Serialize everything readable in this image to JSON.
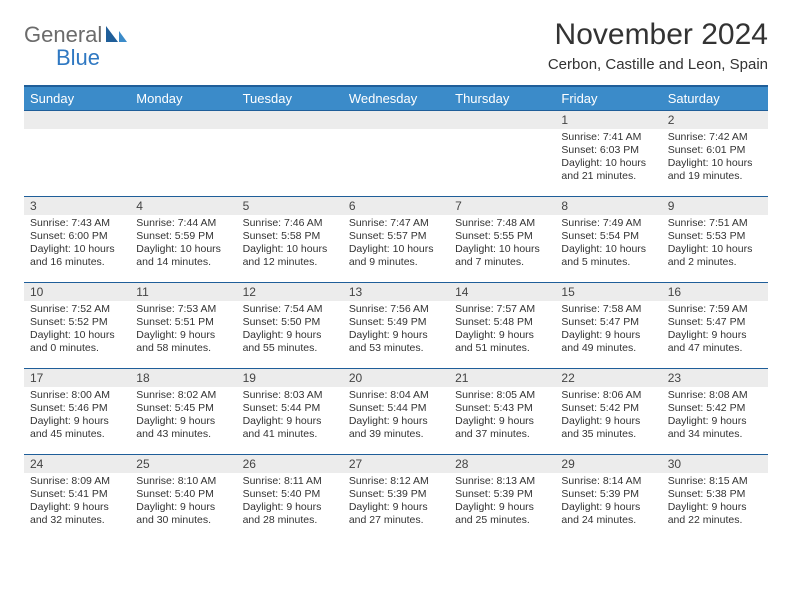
{
  "brand": {
    "general": "General",
    "blue": "Blue"
  },
  "title": "November 2024",
  "subtitle": "Cerbon, Castille and Leon, Spain",
  "colors": {
    "header_bg": "#3b8bc9",
    "header_text": "#ffffff",
    "row_border": "#1f5e99",
    "daynum_bg": "#ececec",
    "brand_blue": "#2f78c2",
    "brand_gray": "#6b6b6b"
  },
  "dow": [
    "Sunday",
    "Monday",
    "Tuesday",
    "Wednesday",
    "Thursday",
    "Friday",
    "Saturday"
  ],
  "weeks": [
    [
      null,
      null,
      null,
      null,
      null,
      {
        "n": "1",
        "sr": "7:41 AM",
        "ss": "6:03 PM",
        "dl": "10 hours and 21 minutes."
      },
      {
        "n": "2",
        "sr": "7:42 AM",
        "ss": "6:01 PM",
        "dl": "10 hours and 19 minutes."
      }
    ],
    [
      {
        "n": "3",
        "sr": "7:43 AM",
        "ss": "6:00 PM",
        "dl": "10 hours and 16 minutes."
      },
      {
        "n": "4",
        "sr": "7:44 AM",
        "ss": "5:59 PM",
        "dl": "10 hours and 14 minutes."
      },
      {
        "n": "5",
        "sr": "7:46 AM",
        "ss": "5:58 PM",
        "dl": "10 hours and 12 minutes."
      },
      {
        "n": "6",
        "sr": "7:47 AM",
        "ss": "5:57 PM",
        "dl": "10 hours and 9 minutes."
      },
      {
        "n": "7",
        "sr": "7:48 AM",
        "ss": "5:55 PM",
        "dl": "10 hours and 7 minutes."
      },
      {
        "n": "8",
        "sr": "7:49 AM",
        "ss": "5:54 PM",
        "dl": "10 hours and 5 minutes."
      },
      {
        "n": "9",
        "sr": "7:51 AM",
        "ss": "5:53 PM",
        "dl": "10 hours and 2 minutes."
      }
    ],
    [
      {
        "n": "10",
        "sr": "7:52 AM",
        "ss": "5:52 PM",
        "dl": "10 hours and 0 minutes."
      },
      {
        "n": "11",
        "sr": "7:53 AM",
        "ss": "5:51 PM",
        "dl": "9 hours and 58 minutes."
      },
      {
        "n": "12",
        "sr": "7:54 AM",
        "ss": "5:50 PM",
        "dl": "9 hours and 55 minutes."
      },
      {
        "n": "13",
        "sr": "7:56 AM",
        "ss": "5:49 PM",
        "dl": "9 hours and 53 minutes."
      },
      {
        "n": "14",
        "sr": "7:57 AM",
        "ss": "5:48 PM",
        "dl": "9 hours and 51 minutes."
      },
      {
        "n": "15",
        "sr": "7:58 AM",
        "ss": "5:47 PM",
        "dl": "9 hours and 49 minutes."
      },
      {
        "n": "16",
        "sr": "7:59 AM",
        "ss": "5:47 PM",
        "dl": "9 hours and 47 minutes."
      }
    ],
    [
      {
        "n": "17",
        "sr": "8:00 AM",
        "ss": "5:46 PM",
        "dl": "9 hours and 45 minutes."
      },
      {
        "n": "18",
        "sr": "8:02 AM",
        "ss": "5:45 PM",
        "dl": "9 hours and 43 minutes."
      },
      {
        "n": "19",
        "sr": "8:03 AM",
        "ss": "5:44 PM",
        "dl": "9 hours and 41 minutes."
      },
      {
        "n": "20",
        "sr": "8:04 AM",
        "ss": "5:44 PM",
        "dl": "9 hours and 39 minutes."
      },
      {
        "n": "21",
        "sr": "8:05 AM",
        "ss": "5:43 PM",
        "dl": "9 hours and 37 minutes."
      },
      {
        "n": "22",
        "sr": "8:06 AM",
        "ss": "5:42 PM",
        "dl": "9 hours and 35 minutes."
      },
      {
        "n": "23",
        "sr": "8:08 AM",
        "ss": "5:42 PM",
        "dl": "9 hours and 34 minutes."
      }
    ],
    [
      {
        "n": "24",
        "sr": "8:09 AM",
        "ss": "5:41 PM",
        "dl": "9 hours and 32 minutes."
      },
      {
        "n": "25",
        "sr": "8:10 AM",
        "ss": "5:40 PM",
        "dl": "9 hours and 30 minutes."
      },
      {
        "n": "26",
        "sr": "8:11 AM",
        "ss": "5:40 PM",
        "dl": "9 hours and 28 minutes."
      },
      {
        "n": "27",
        "sr": "8:12 AM",
        "ss": "5:39 PM",
        "dl": "9 hours and 27 minutes."
      },
      {
        "n": "28",
        "sr": "8:13 AM",
        "ss": "5:39 PM",
        "dl": "9 hours and 25 minutes."
      },
      {
        "n": "29",
        "sr": "8:14 AM",
        "ss": "5:39 PM",
        "dl": "9 hours and 24 minutes."
      },
      {
        "n": "30",
        "sr": "8:15 AM",
        "ss": "5:38 PM",
        "dl": "9 hours and 22 minutes."
      }
    ]
  ],
  "labels": {
    "sunrise": "Sunrise:",
    "sunset": "Sunset:",
    "daylight": "Daylight:"
  }
}
